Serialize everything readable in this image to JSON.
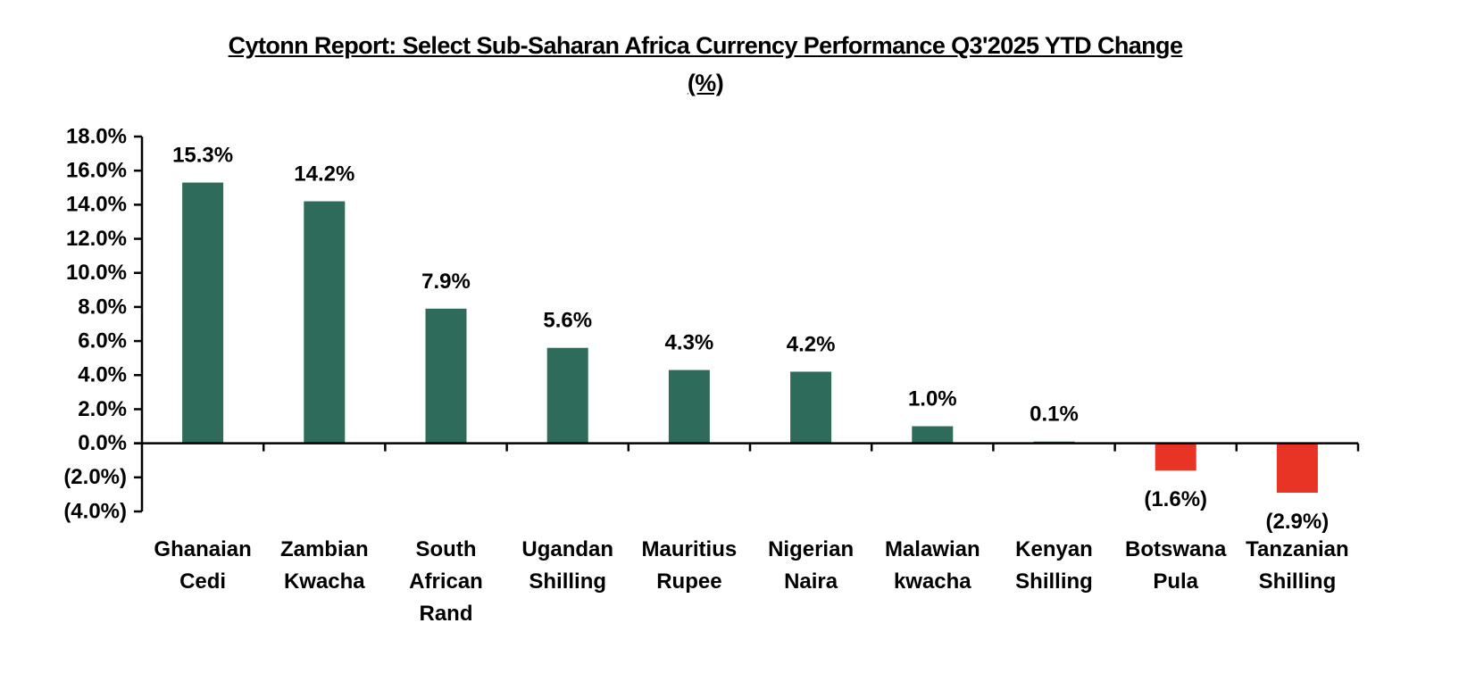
{
  "chart_data": {
    "type": "bar",
    "title_lines": [
      "Cytonn Report: Select  Sub-Saharan Africa Currency Performance  Q3'2025 YTD Change",
      "(%)"
    ],
    "xlabel": "",
    "ylabel": "",
    "ylim": [
      -4.0,
      18.0
    ],
    "ytick_step": 2.0,
    "yticks": [
      "18.0%",
      "16.0%",
      "14.0%",
      "12.0%",
      "10.0%",
      "8.0%",
      "6.0%",
      "4.0%",
      "2.0%",
      "0.0%",
      "(2.0%)",
      "(4.0%)"
    ],
    "grid": false,
    "legend": "none",
    "categories": [
      [
        "Ghanaian",
        "Cedi"
      ],
      [
        "Zambian",
        "Kwacha"
      ],
      [
        "South",
        "African",
        "Rand"
      ],
      [
        "Ugandan",
        "Shilling"
      ],
      [
        "Mauritius",
        "Rupee"
      ],
      [
        "Nigerian",
        "Naira"
      ],
      [
        "Malawian",
        "kwacha"
      ],
      [
        "Kenyan",
        "Shilling"
      ],
      [
        "Botswana",
        "Pula"
      ],
      [
        "Tanzanian",
        "Shilling"
      ]
    ],
    "values": [
      15.3,
      14.2,
      7.9,
      5.6,
      4.3,
      4.2,
      1.0,
      0.1,
      -1.6,
      -2.9
    ],
    "data_labels": [
      "15.3%",
      "14.2%",
      "7.9%",
      "5.6%",
      "4.3%",
      "4.2%",
      "1.0%",
      "0.1%",
      "(1.6%)",
      "(2.9%)"
    ],
    "colors": {
      "positive": "#2E6B5A",
      "negative": "#E83424",
      "axis": "#000000"
    }
  }
}
